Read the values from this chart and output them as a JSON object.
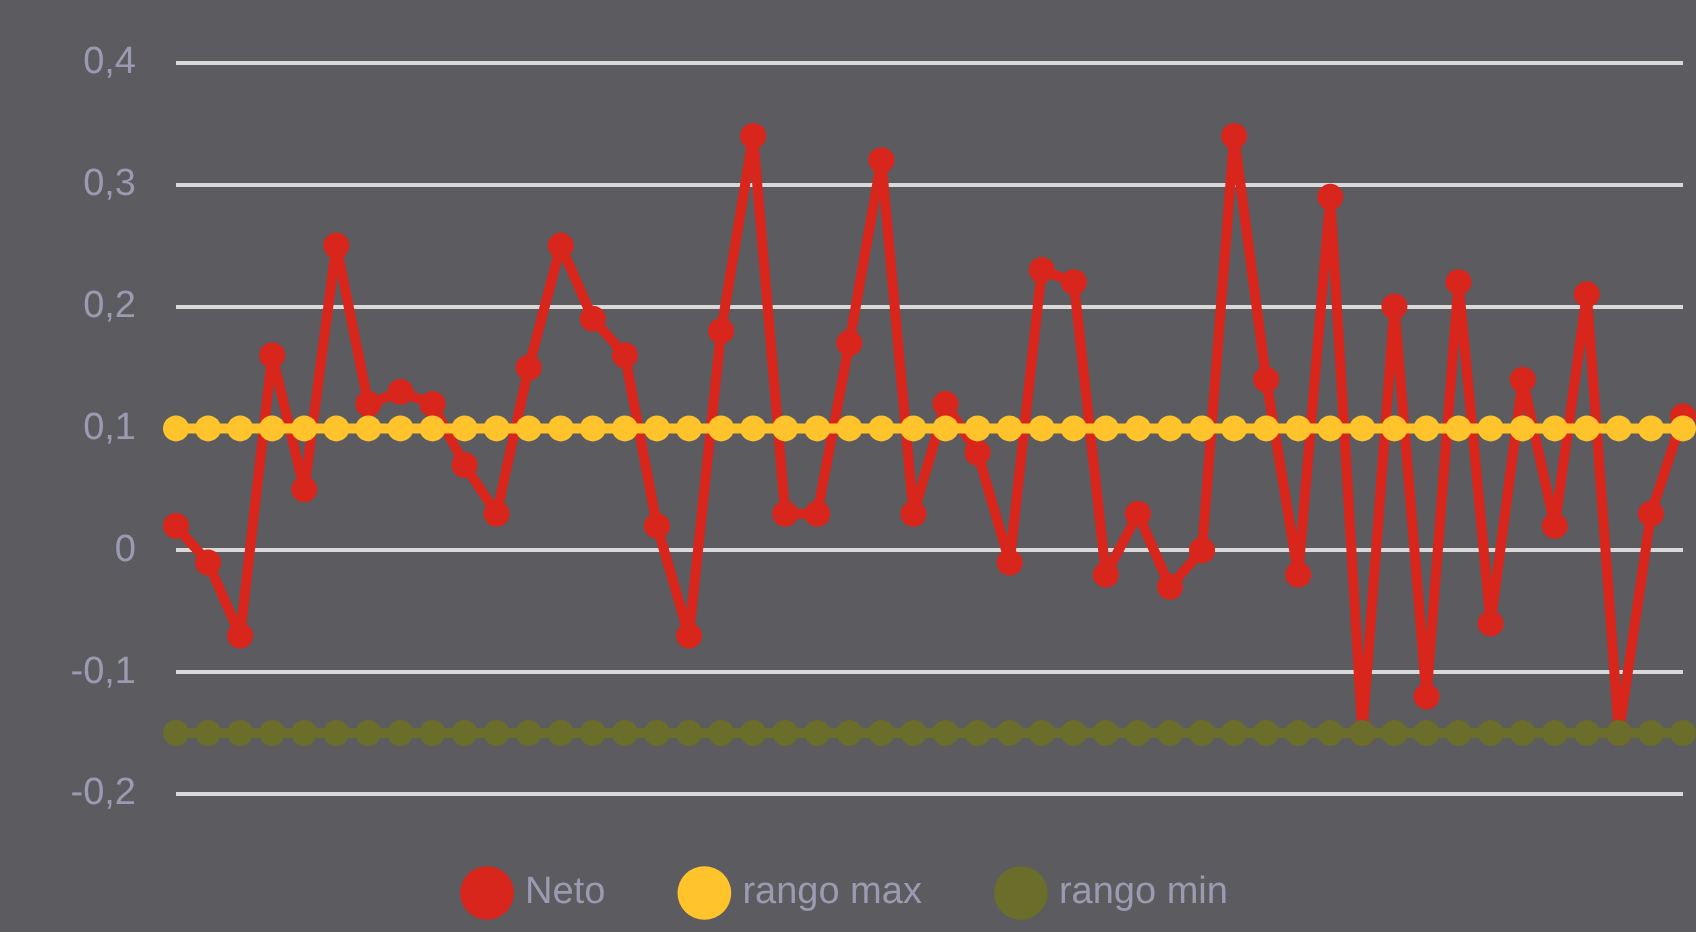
{
  "chart_data": {
    "type": "line",
    "categories": [
      null,
      null,
      null,
      null,
      null,
      null,
      null,
      null,
      null,
      null,
      null,
      null,
      null,
      null,
      null,
      null,
      null,
      null,
      null,
      null,
      null,
      null,
      null,
      null,
      null,
      null,
      null,
      null,
      null,
      null,
      null,
      null,
      null,
      null,
      null,
      null,
      null,
      null,
      null,
      null,
      null,
      null,
      null,
      null,
      null,
      null,
      null,
      null
    ],
    "series": [
      {
        "name": "Neto",
        "color": "#d9261c",
        "values": [
          0.02,
          -0.01,
          -0.07,
          0.16,
          0.05,
          0.25,
          0.12,
          0.13,
          0.12,
          0.07,
          0.03,
          0.15,
          0.25,
          0.19,
          0.16,
          0.02,
          -0.07,
          0.18,
          0.34,
          0.03,
          0.03,
          0.17,
          0.32,
          0.03,
          0.12,
          0.08,
          -0.01,
          0.23,
          0.22,
          -0.02,
          0.03,
          -0.03,
          0.0,
          0.34,
          0.14,
          -0.02,
          0.29,
          -0.15,
          0.2,
          -0.12,
          0.22,
          -0.06,
          0.14,
          0.02,
          0.21,
          -0.15,
          0.03,
          0.11
        ]
      },
      {
        "name": "rango max",
        "color": "#ffc42b",
        "values": [
          0.1,
          0.1,
          0.1,
          0.1,
          0.1,
          0.1,
          0.1,
          0.1,
          0.1,
          0.1,
          0.1,
          0.1,
          0.1,
          0.1,
          0.1,
          0.1,
          0.1,
          0.1,
          0.1,
          0.1,
          0.1,
          0.1,
          0.1,
          0.1,
          0.1,
          0.1,
          0.1,
          0.1,
          0.1,
          0.1,
          0.1,
          0.1,
          0.1,
          0.1,
          0.1,
          0.1,
          0.1,
          0.1,
          0.1,
          0.1,
          0.1,
          0.1,
          0.1,
          0.1,
          0.1,
          0.1,
          0.1,
          0.1
        ]
      },
      {
        "name": "rango min",
        "color": "#6b6d2a",
        "values": [
          -0.15,
          -0.15,
          -0.15,
          -0.15,
          -0.15,
          -0.15,
          -0.15,
          -0.15,
          -0.15,
          -0.15,
          -0.15,
          -0.15,
          -0.15,
          -0.15,
          -0.15,
          -0.15,
          -0.15,
          -0.15,
          -0.15,
          -0.15,
          -0.15,
          -0.15,
          -0.15,
          -0.15,
          -0.15,
          -0.15,
          -0.15,
          -0.15,
          -0.15,
          -0.15,
          -0.15,
          -0.15,
          -0.15,
          -0.15,
          -0.15,
          -0.15,
          -0.15,
          -0.15,
          -0.15,
          -0.15,
          -0.15,
          -0.15,
          -0.15,
          -0.15,
          -0.15,
          -0.15,
          -0.15,
          -0.15
        ]
      }
    ],
    "ylim": [
      -0.2,
      0.4
    ],
    "yticks": [
      {
        "value": -0.2,
        "label": "-0,2"
      },
      {
        "value": -0.1,
        "label": "-0,1"
      },
      0,
      {
        "value": 0.1,
        "label": "0,1"
      },
      {
        "value": 0.2,
        "label": "0,2"
      },
      {
        "value": 0.3,
        "label": "0,3"
      },
      {
        "value": 0.4,
        "label": "0,4"
      }
    ],
    "grid": "y",
    "legend": "bottom",
    "marker": "circle",
    "line_style": "solid",
    "tick_labels": "y"
  }
}
